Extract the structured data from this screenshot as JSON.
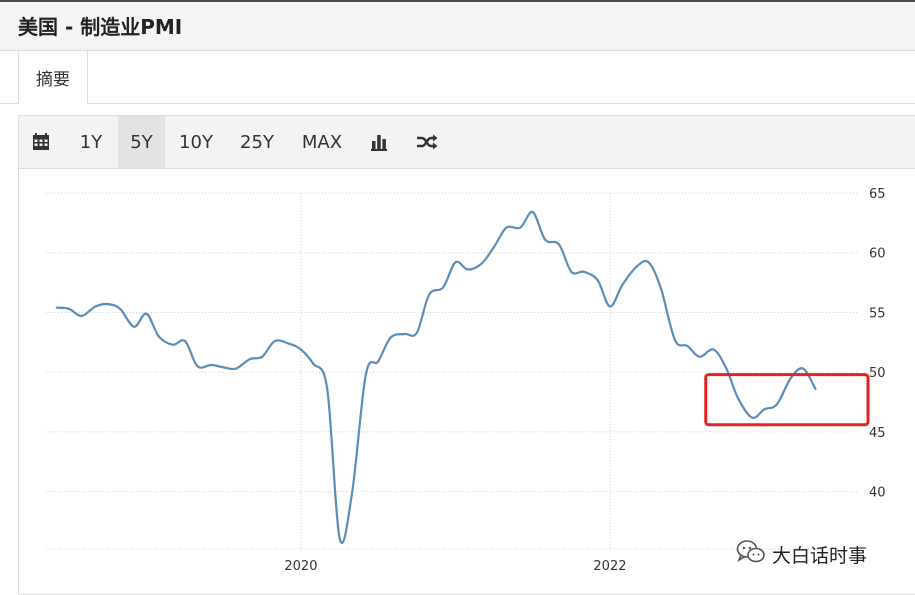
{
  "page": {
    "title": "美国 - 制造业PMI"
  },
  "tabs": [
    {
      "label": "摘要"
    }
  ],
  "toolbar": {
    "calendar_icon": "calendar-icon",
    "ranges": [
      "1Y",
      "5Y",
      "10Y",
      "25Y",
      "MAX"
    ],
    "active_range": "5Y",
    "bar_chart_icon": "bar-chart-icon",
    "shuffle_icon": "shuffle-icon"
  },
  "watermark": {
    "text": "大白话时事",
    "icon": "wechat-icon"
  },
  "colors": {
    "line": "#5b8db9",
    "highlight": "#e32222",
    "grid": "#d0d0d0"
  },
  "chart_data": {
    "type": "line",
    "title": "",
    "xlabel": "",
    "ylabel": "",
    "x_ticks": [
      {
        "label": "2020",
        "t": 2020.0
      },
      {
        "label": "2022",
        "t": 2022.0
      }
    ],
    "y_ticks": [
      40,
      45,
      50,
      55,
      60,
      65
    ],
    "ylim": [
      35.2,
      65
    ],
    "xlim": [
      2018.35,
      2023.67
    ],
    "y_axis_position": "right",
    "grid": true,
    "series": [
      {
        "values": [
          {
            "t": 2018.42,
            "y": 55.4
          },
          {
            "t": 2018.5,
            "y": 55.3
          },
          {
            "t": 2018.58,
            "y": 54.7
          },
          {
            "t": 2018.67,
            "y": 55.5
          },
          {
            "t": 2018.75,
            "y": 55.7
          },
          {
            "t": 2018.83,
            "y": 55.3
          },
          {
            "t": 2018.92,
            "y": 53.8
          },
          {
            "t": 2019.0,
            "y": 54.9
          },
          {
            "t": 2019.08,
            "y": 53.0
          },
          {
            "t": 2019.17,
            "y": 52.3
          },
          {
            "t": 2019.25,
            "y": 52.6
          },
          {
            "t": 2019.33,
            "y": 50.5
          },
          {
            "t": 2019.42,
            "y": 50.6
          },
          {
            "t": 2019.5,
            "y": 50.4
          },
          {
            "t": 2019.58,
            "y": 50.3
          },
          {
            "t": 2019.67,
            "y": 51.1
          },
          {
            "t": 2019.75,
            "y": 51.3
          },
          {
            "t": 2019.83,
            "y": 52.6
          },
          {
            "t": 2019.92,
            "y": 52.4
          },
          {
            "t": 2020.0,
            "y": 51.9
          },
          {
            "t": 2020.08,
            "y": 50.7
          },
          {
            "t": 2020.17,
            "y": 48.6
          },
          {
            "t": 2020.25,
            "y": 36.1
          },
          {
            "t": 2020.33,
            "y": 39.8
          },
          {
            "t": 2020.42,
            "y": 49.8
          },
          {
            "t": 2020.5,
            "y": 50.9
          },
          {
            "t": 2020.58,
            "y": 52.9
          },
          {
            "t": 2020.67,
            "y": 53.2
          },
          {
            "t": 2020.75,
            "y": 53.3
          },
          {
            "t": 2020.83,
            "y": 56.5
          },
          {
            "t": 2020.92,
            "y": 57.1
          },
          {
            "t": 2021.0,
            "y": 59.2
          },
          {
            "t": 2021.08,
            "y": 58.6
          },
          {
            "t": 2021.17,
            "y": 59.1
          },
          {
            "t": 2021.25,
            "y": 60.5
          },
          {
            "t": 2021.33,
            "y": 62.1
          },
          {
            "t": 2021.42,
            "y": 62.1
          },
          {
            "t": 2021.5,
            "y": 63.4
          },
          {
            "t": 2021.58,
            "y": 61.1
          },
          {
            "t": 2021.67,
            "y": 60.7
          },
          {
            "t": 2021.75,
            "y": 58.4
          },
          {
            "t": 2021.83,
            "y": 58.4
          },
          {
            "t": 2021.92,
            "y": 57.7
          },
          {
            "t": 2022.0,
            "y": 55.5
          },
          {
            "t": 2022.08,
            "y": 57.3
          },
          {
            "t": 2022.17,
            "y": 58.8
          },
          {
            "t": 2022.25,
            "y": 59.2
          },
          {
            "t": 2022.33,
            "y": 57.0
          },
          {
            "t": 2022.42,
            "y": 52.7
          },
          {
            "t": 2022.5,
            "y": 52.2
          },
          {
            "t": 2022.58,
            "y": 51.3
          },
          {
            "t": 2022.67,
            "y": 51.9
          },
          {
            "t": 2022.75,
            "y": 50.4
          },
          {
            "t": 2022.83,
            "y": 47.8
          },
          {
            "t": 2022.92,
            "y": 46.2
          },
          {
            "t": 2023.0,
            "y": 46.9
          },
          {
            "t": 2023.08,
            "y": 47.3
          },
          {
            "t": 2023.17,
            "y": 49.5
          },
          {
            "t": 2023.25,
            "y": 50.3
          },
          {
            "t": 2023.33,
            "y": 48.6
          }
        ]
      }
    ],
    "highlight_box": {
      "t_start": 2022.62,
      "t_end": 2023.67,
      "y_low": 45.6,
      "y_high": 49.8,
      "color": "#e32222"
    }
  }
}
